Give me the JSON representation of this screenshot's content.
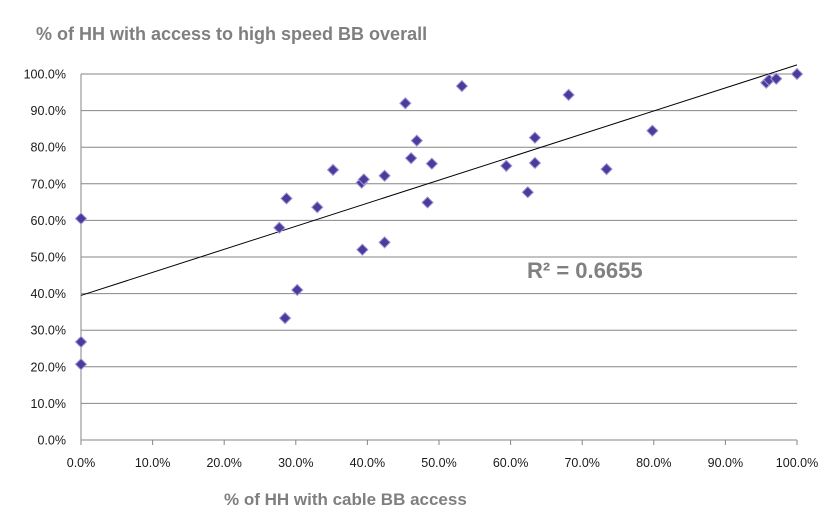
{
  "chart_data": {
    "type": "scatter",
    "title": "% of HH with access to high speed BB overall",
    "xlabel": "% of HH with cable  BB access",
    "ylabel": "",
    "xlim": [
      0,
      1
    ],
    "ylim": [
      0,
      1
    ],
    "x_ticks": [
      "0.0%",
      "10.0%",
      "20.0%",
      "30.0%",
      "40.0%",
      "50.0%",
      "60.0%",
      "70.0%",
      "80.0%",
      "90.0%",
      "100.0%"
    ],
    "y_ticks": [
      "0.0%",
      "10.0%",
      "20.0%",
      "30.0%",
      "40.0%",
      "50.0%",
      "60.0%",
      "70.0%",
      "80.0%",
      "90.0%",
      "100.0%"
    ],
    "grid": "horizontal",
    "marker": "diamond",
    "marker_color": "#4b3b9a",
    "trendline": {
      "type": "linear",
      "intercept": 0.395,
      "slope": 0.63
    },
    "annotation": "R² = 0.6655",
    "points": [
      {
        "x": 0.0,
        "y": 0.605
      },
      {
        "x": 0.0,
        "y": 0.268
      },
      {
        "x": 0.0,
        "y": 0.207
      },
      {
        "x": 0.277,
        "y": 0.58
      },
      {
        "x": 0.287,
        "y": 0.66
      },
      {
        "x": 0.285,
        "y": 0.333
      },
      {
        "x": 0.302,
        "y": 0.41
      },
      {
        "x": 0.33,
        "y": 0.636
      },
      {
        "x": 0.352,
        "y": 0.738
      },
      {
        "x": 0.392,
        "y": 0.703
      },
      {
        "x": 0.395,
        "y": 0.712
      },
      {
        "x": 0.393,
        "y": 0.52
      },
      {
        "x": 0.424,
        "y": 0.722
      },
      {
        "x": 0.424,
        "y": 0.54
      },
      {
        "x": 0.453,
        "y": 0.92
      },
      {
        "x": 0.461,
        "y": 0.77
      },
      {
        "x": 0.469,
        "y": 0.818
      },
      {
        "x": 0.484,
        "y": 0.649
      },
      {
        "x": 0.49,
        "y": 0.755
      },
      {
        "x": 0.532,
        "y": 0.967
      },
      {
        "x": 0.594,
        "y": 0.749
      },
      {
        "x": 0.624,
        "y": 0.677
      },
      {
        "x": 0.634,
        "y": 0.826
      },
      {
        "x": 0.634,
        "y": 0.757
      },
      {
        "x": 0.681,
        "y": 0.943
      },
      {
        "x": 0.734,
        "y": 0.74
      },
      {
        "x": 0.798,
        "y": 0.845
      },
      {
        "x": 0.957,
        "y": 0.976
      },
      {
        "x": 0.961,
        "y": 0.984
      },
      {
        "x": 0.971,
        "y": 0.987
      },
      {
        "x": 1.0,
        "y": 1.0
      }
    ]
  }
}
